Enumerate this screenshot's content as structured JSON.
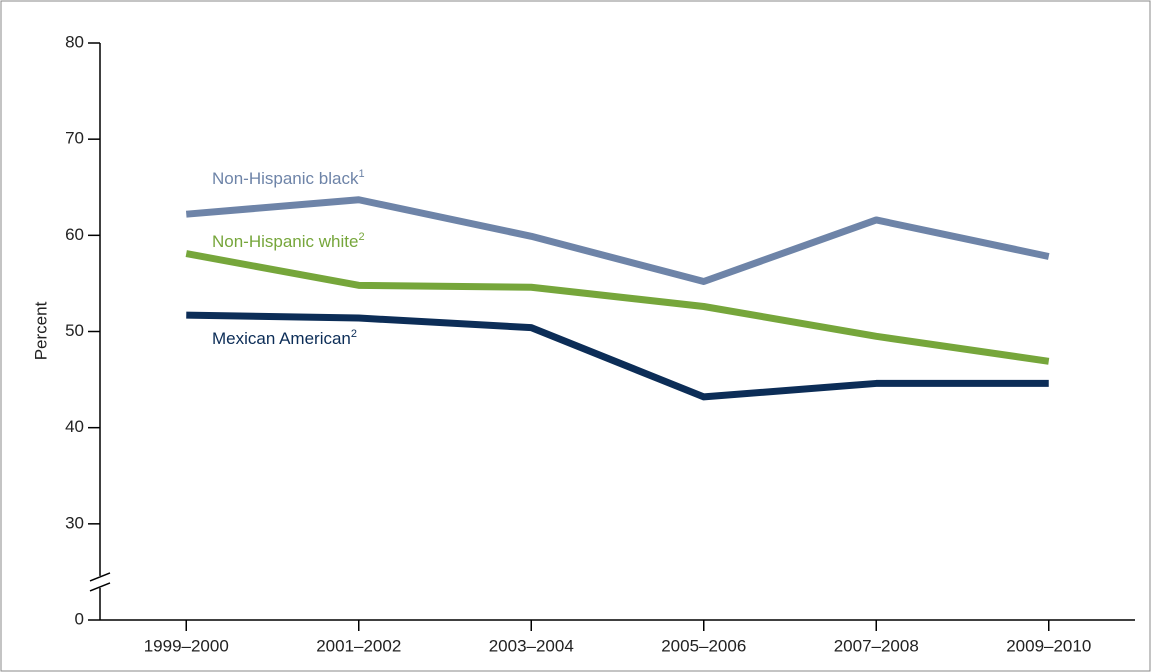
{
  "chart_data": {
    "type": "line",
    "y_label": "Percent",
    "categories": [
      "1999–2000",
      "2001–2002",
      "2003–2004",
      "2005–2006",
      "2007–2008",
      "2009–2010"
    ],
    "series": [
      {
        "name": "Non-Hispanic black",
        "note": "1",
        "color": "#6e84a8",
        "values": [
          62.2,
          63.7,
          59.9,
          55.2,
          61.6,
          57.8
        ]
      },
      {
        "name": "Non-Hispanic white",
        "note": "2",
        "color": "#76a63b",
        "values": [
          58.1,
          54.8,
          54.6,
          52.6,
          49.5,
          46.9
        ]
      },
      {
        "name": "Mexican American",
        "note": "2",
        "color": "#0c2d57",
        "values": [
          51.7,
          51.4,
          50.4,
          43.2,
          44.6,
          44.6
        ]
      }
    ],
    "ylim": [
      0,
      80
    ],
    "yticks": [
      0,
      30,
      40,
      50,
      60,
      70,
      80
    ],
    "axis_break": true
  }
}
